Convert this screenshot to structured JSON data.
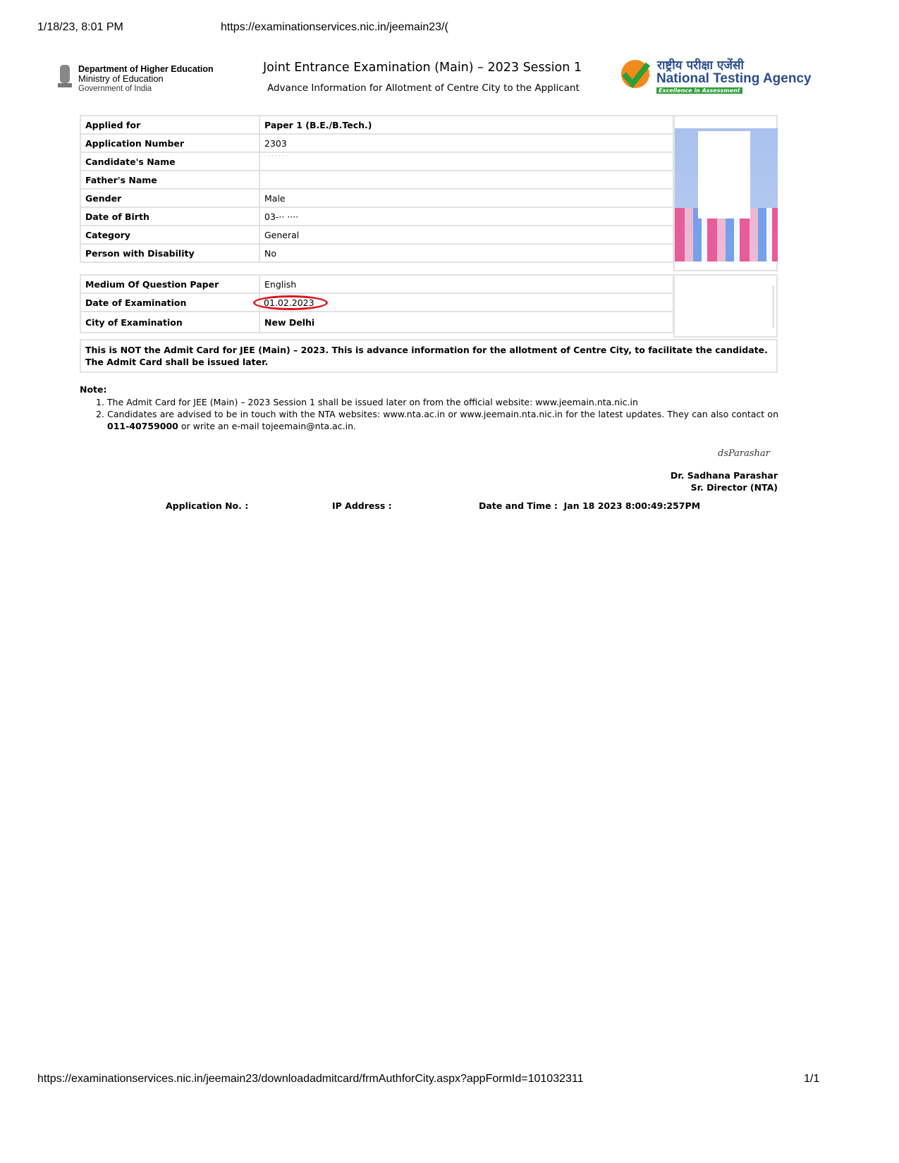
{
  "browser": {
    "datetime": "1/18/23, 8:01 PM",
    "url_top": "https://examinationservices.nic.in/jeemain23/(",
    "url_bottom": "https://examinationservices.nic.in/jeemain23/downloadadmitcard/frmAuthforCity.aspx?appFormId=101032311",
    "page": "1/1"
  },
  "header": {
    "dept_line1": "Department of Higher Education",
    "dept_line2": "Ministry of Education",
    "dept_line3": "Government of India",
    "emblem_text": "सत्यमेव जयते",
    "title": "Joint Entrance Examination (Main) – 2023 Session 1",
    "subtitle": "Advance Information for Allotment of Centre City to the Applicant",
    "nta_hindi": "राष्ट्रीय परीक्षा एजेंसी",
    "nta_name": "National Testing Agency",
    "nta_tagline": "Excellence in Assessment"
  },
  "details": [
    {
      "label": "Applied for",
      "value": "Paper 1 (B.E./B.Tech.)",
      "bold": true
    },
    {
      "label": "Application Number",
      "value": "2303"
    },
    {
      "label": "Candidate's Name",
      "value": "· · · · · · ·"
    },
    {
      "label": "Father's Name",
      "value": ""
    },
    {
      "label": "Gender",
      "value": "Male"
    },
    {
      "label": "Date of Birth",
      "value": "03-·· ····"
    },
    {
      "label": "Category",
      "value": "General"
    },
    {
      "label": "Person with Disability",
      "value": "No"
    }
  ],
  "exam": [
    {
      "label": "Medium Of Question Paper",
      "value": "English"
    },
    {
      "label": "Date of Examination",
      "value": "01.02.2023"
    },
    {
      "label": "City of Examination",
      "value": "New Delhi",
      "bold": true
    }
  ],
  "disclaimer": "This is NOT the Admit Card for JEE (Main) – 2023. This is advance information for the allotment of Centre City, to facilitate the candidate. The Admit Card shall be issued later.",
  "note": {
    "heading": "Note:",
    "item1": "The Admit Card for JEE (Main) – 2023 Session 1 shall be issued later on from the official website: www.jeemain.nta.nic.in",
    "item2_pre": "Candidates are advised to be in touch with the NTA websites: www.nta.ac.in or www.jeemain.nta.nic.in for the latest updates. They can also contact on ",
    "item2_phone": "011-40759000",
    "item2_post": " or write an e-mail tojeemain@nta.ac.in."
  },
  "signature": {
    "script": "dsParashar",
    "name": "Dr. Sadhana Parashar",
    "title": "Sr. Director (NTA)"
  },
  "footer": {
    "app_no_label": "Application No. :",
    "ip_label": "IP Address :",
    "datetime_label": "Date and Time :",
    "datetime_value": "Jan 18 2023 8:00:49:257PM"
  },
  "colors": {
    "highlight": "#e0141e",
    "nta_blue": "#2a4d8f",
    "nta_green": "#2e9e3a",
    "nta_orange": "#f08a1c"
  }
}
